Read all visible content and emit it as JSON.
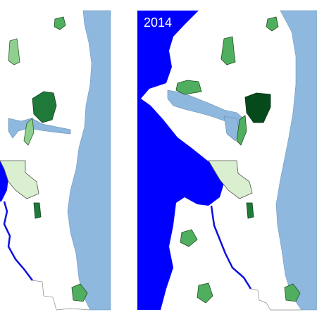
{
  "panels": [
    {
      "label": "2014"
    }
  ]
}
